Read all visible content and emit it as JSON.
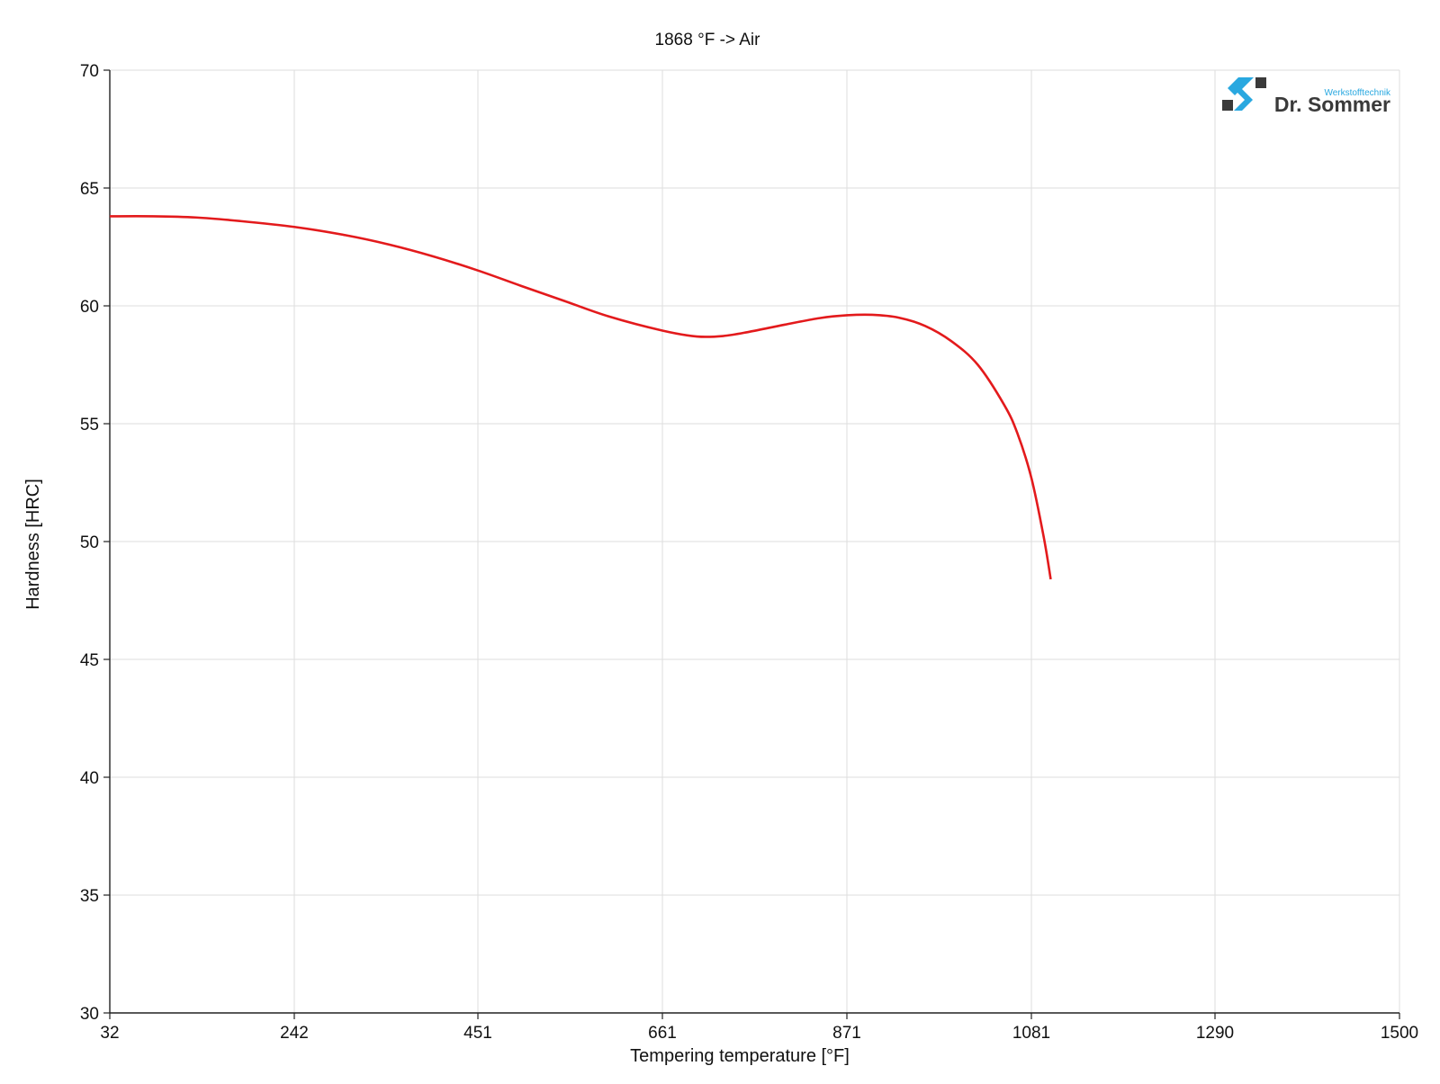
{
  "chart_data": {
    "type": "line",
    "title": "1868 °F -> Air",
    "xlabel": "Tempering temperature [°F]",
    "ylabel": "Hardness [HRC]",
    "xlim": [
      32,
      1500
    ],
    "ylim": [
      30,
      70
    ],
    "x_ticks": [
      32,
      242,
      451,
      661,
      871,
      1081,
      1290,
      1500
    ],
    "y_ticks": [
      30,
      35,
      40,
      45,
      50,
      55,
      60,
      65,
      70
    ],
    "grid": true,
    "legend": "none",
    "series": [
      {
        "color": "#e31a1c",
        "points": [
          [
            32,
            63.8
          ],
          [
            80,
            63.8
          ],
          [
            130,
            63.75
          ],
          [
            180,
            63.6
          ],
          [
            242,
            63.35
          ],
          [
            300,
            63.0
          ],
          [
            350,
            62.6
          ],
          [
            400,
            62.1
          ],
          [
            451,
            61.5
          ],
          [
            500,
            60.85
          ],
          [
            550,
            60.2
          ],
          [
            600,
            59.55
          ],
          [
            661,
            58.95
          ],
          [
            700,
            58.7
          ],
          [
            730,
            58.72
          ],
          [
            760,
            58.9
          ],
          [
            800,
            59.2
          ],
          [
            840,
            59.48
          ],
          [
            871,
            59.6
          ],
          [
            900,
            59.62
          ],
          [
            930,
            59.5
          ],
          [
            960,
            59.15
          ],
          [
            990,
            58.5
          ],
          [
            1020,
            57.5
          ],
          [
            1050,
            55.8
          ],
          [
            1065,
            54.6
          ],
          [
            1081,
            52.7
          ],
          [
            1095,
            50.2
          ],
          [
            1103,
            48.4
          ]
        ]
      }
    ]
  },
  "logo": {
    "subtitle": "Werkstofftechnik",
    "name": "Dr. Sommer",
    "accent_color": "#29a8e0",
    "dark_color": "#3a3a3a"
  }
}
